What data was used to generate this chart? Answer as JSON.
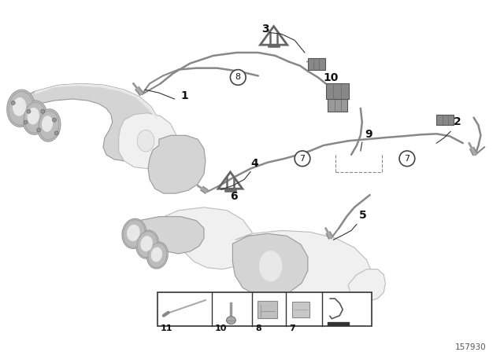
{
  "bg_color": "#ffffff",
  "fig_width": 6.4,
  "fig_height": 4.48,
  "dpi": 100,
  "diagram_number": "157930",
  "gray_body": "#d4d4d4",
  "gray_mid": "#bcbcbc",
  "gray_dark": "#999999",
  "gray_light": "#e8e8e8",
  "gray_very_light": "#f0f0f0",
  "wire_color": "#888888",
  "sensor_color": "#aaaaaa",
  "connector_dark": "#777777",
  "label_color": "#111111",
  "line_dark": "#555555",
  "triangle_color": "#666666"
}
